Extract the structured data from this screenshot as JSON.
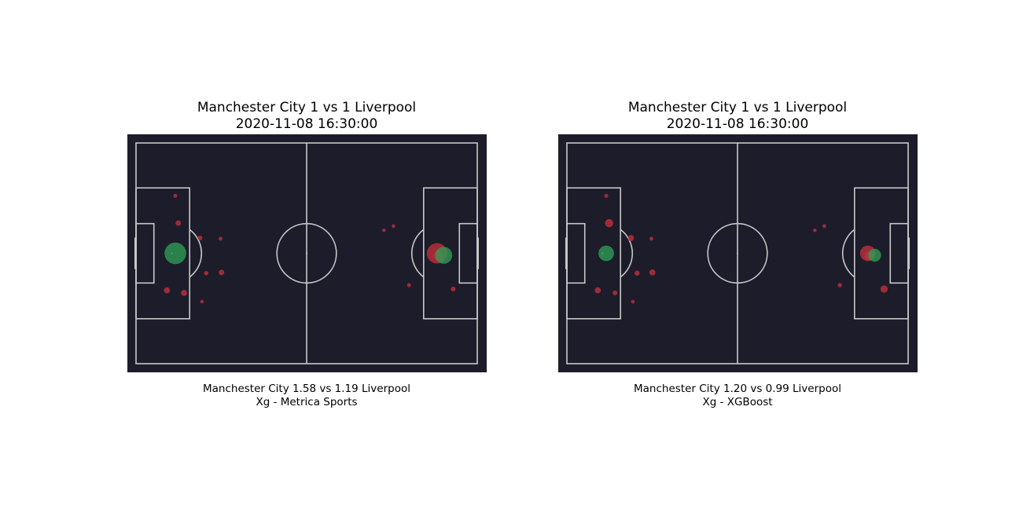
{
  "chart_data": [
    {
      "type": "scatter",
      "title": "Manchester City 1 vs 1 Liverpool",
      "subtitle": "2020-11-08 16:30:00",
      "caption_score": "Manchester City 1.58 vs 1.19 Liverpool",
      "caption_model": "Xg - Metrica Sports",
      "pitch": {
        "length": 105,
        "width": 68,
        "color": "#1c1c2a",
        "line_color": "#c8c8c8"
      },
      "colors": {
        "miss": "#c0303c",
        "goal": "#2e9e54"
      },
      "shots": [
        {
          "x": 12.1,
          "y": 16.3,
          "xg": 0.02,
          "goal": false
        },
        {
          "x": 13.0,
          "y": 24.7,
          "xg": 0.04,
          "goal": false
        },
        {
          "x": 12.1,
          "y": 34.0,
          "xg": 0.62,
          "goal": true
        },
        {
          "x": 19.7,
          "y": 29.3,
          "xg": 0.03,
          "goal": false
        },
        {
          "x": 26.0,
          "y": 29.5,
          "xg": 0.02,
          "goal": false
        },
        {
          "x": 21.6,
          "y": 40.1,
          "xg": 0.025,
          "goal": false
        },
        {
          "x": 26.3,
          "y": 39.9,
          "xg": 0.04,
          "goal": false
        },
        {
          "x": 9.5,
          "y": 45.4,
          "xg": 0.05,
          "goal": false
        },
        {
          "x": 14.8,
          "y": 46.2,
          "xg": 0.05,
          "goal": false
        },
        {
          "x": 20.3,
          "y": 48.9,
          "xg": 0.012,
          "goal": false
        },
        {
          "x": 76.3,
          "y": 26.9,
          "xg": 0.01,
          "goal": false
        },
        {
          "x": 79.2,
          "y": 25.6,
          "xg": 0.015,
          "goal": false
        },
        {
          "x": 92.6,
          "y": 34.0,
          "xg": 0.55,
          "goal": false
        },
        {
          "x": 93.0,
          "y": 34.8,
          "xg": 0.12,
          "goal": false
        },
        {
          "x": 84.0,
          "y": 43.8,
          "xg": 0.02,
          "goal": false
        },
        {
          "x": 97.6,
          "y": 45.0,
          "xg": 0.03,
          "goal": false
        },
        {
          "x": 94.7,
          "y": 34.6,
          "xg": 0.38,
          "goal": true
        }
      ]
    },
    {
      "type": "scatter",
      "title": "Manchester City 1 vs 1 Liverpool",
      "subtitle": "2020-11-08 16:30:00",
      "caption_score": "Manchester City 1.20 vs 0.99 Liverpool",
      "caption_model": "Xg - XGBoost",
      "pitch": {
        "length": 105,
        "width": 68,
        "color": "#1c1c2a",
        "line_color": "#c8c8c8"
      },
      "colors": {
        "miss": "#c0303c",
        "goal": "#2e9e54"
      },
      "shots": [
        {
          "x": 12.1,
          "y": 16.3,
          "xg": 0.02,
          "goal": false
        },
        {
          "x": 13.0,
          "y": 24.7,
          "xg": 0.09,
          "goal": false
        },
        {
          "x": 12.1,
          "y": 34.0,
          "xg": 0.32,
          "goal": true
        },
        {
          "x": 19.7,
          "y": 29.3,
          "xg": 0.05,
          "goal": false
        },
        {
          "x": 26.0,
          "y": 29.5,
          "xg": 0.02,
          "goal": false
        },
        {
          "x": 21.6,
          "y": 40.1,
          "xg": 0.035,
          "goal": false
        },
        {
          "x": 26.3,
          "y": 39.9,
          "xg": 0.05,
          "goal": false
        },
        {
          "x": 9.5,
          "y": 45.4,
          "xg": 0.05,
          "goal": false
        },
        {
          "x": 14.8,
          "y": 46.2,
          "xg": 0.03,
          "goal": false
        },
        {
          "x": 20.3,
          "y": 48.9,
          "xg": 0.012,
          "goal": false
        },
        {
          "x": 76.3,
          "y": 26.9,
          "xg": 0.015,
          "goal": false
        },
        {
          "x": 79.2,
          "y": 25.6,
          "xg": 0.02,
          "goal": false
        },
        {
          "x": 92.6,
          "y": 34.0,
          "xg": 0.32,
          "goal": false
        },
        {
          "x": 93.0,
          "y": 34.8,
          "xg": 0.1,
          "goal": false
        },
        {
          "x": 84.0,
          "y": 43.8,
          "xg": 0.025,
          "goal": false
        },
        {
          "x": 97.6,
          "y": 45.0,
          "xg": 0.07,
          "goal": false
        },
        {
          "x": 94.7,
          "y": 34.6,
          "xg": 0.22,
          "goal": true
        }
      ]
    }
  ]
}
